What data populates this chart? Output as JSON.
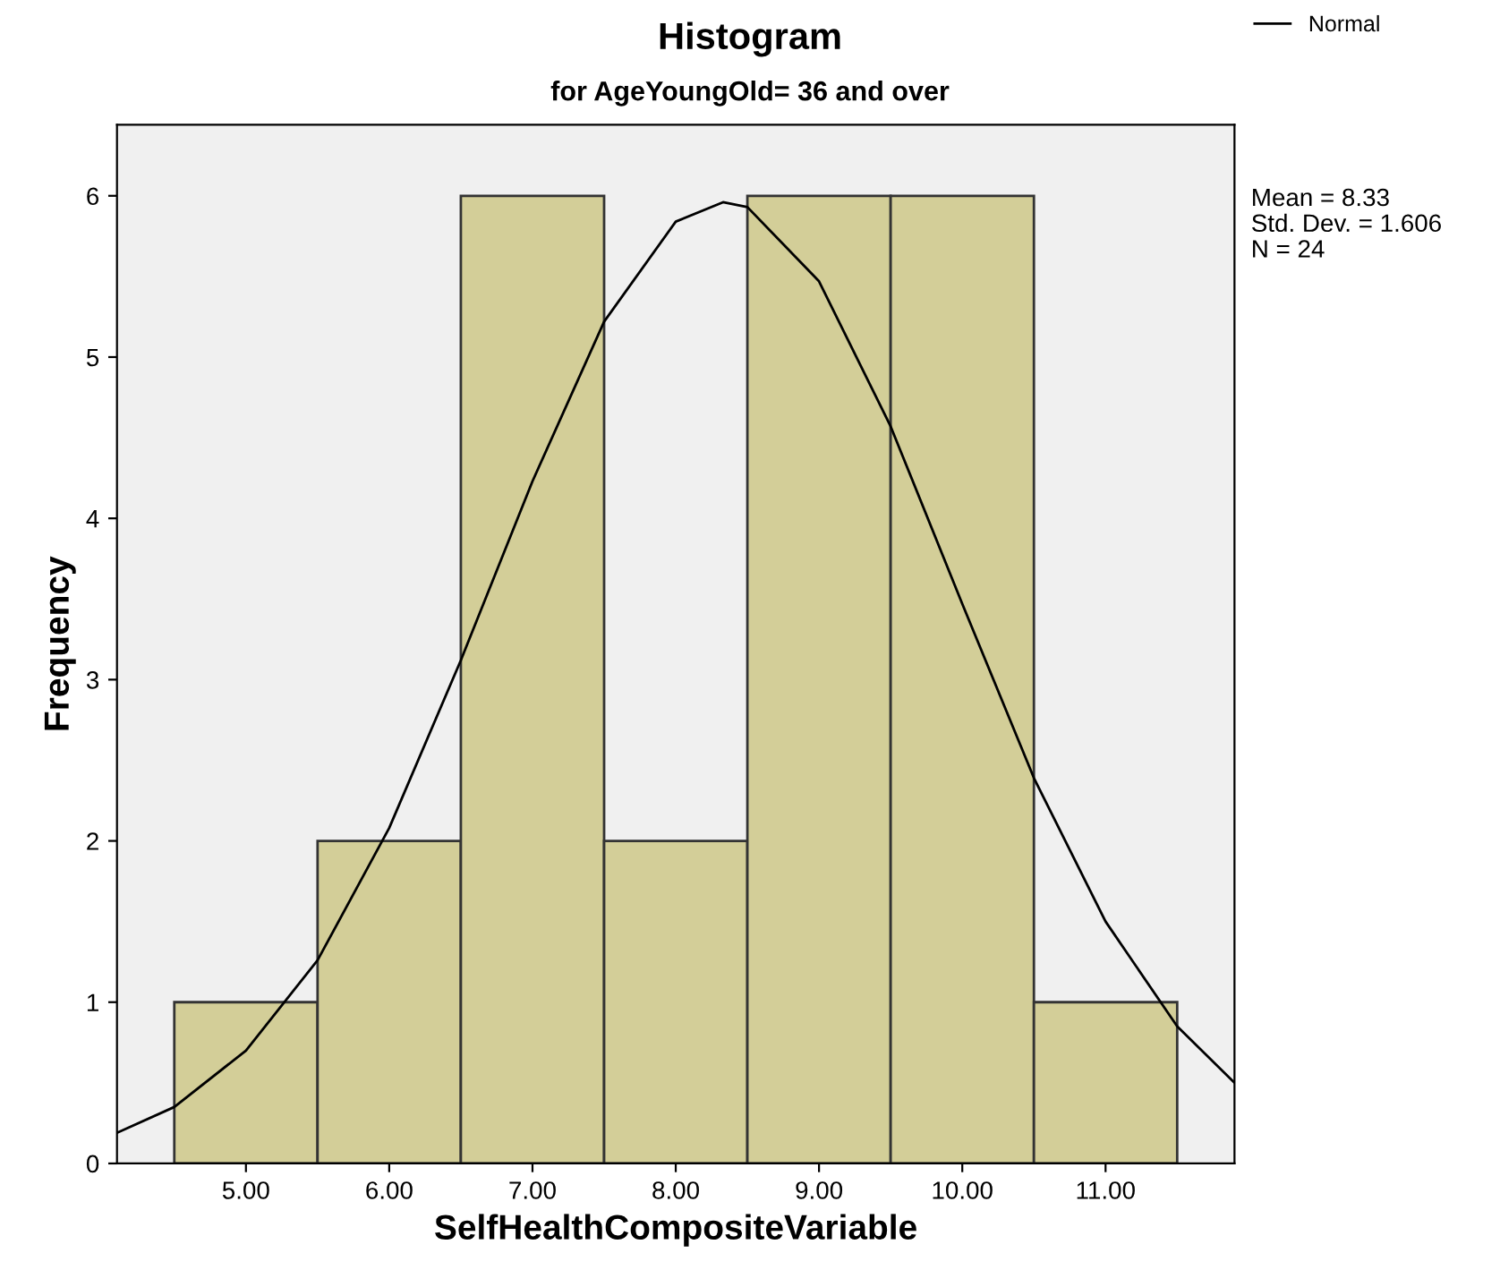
{
  "chart_data": {
    "type": "histogram",
    "title": "Histogram",
    "subtitle": "for AgeYoungOld= 36 and over",
    "xlabel": "SelfHealthCompositeVariable",
    "ylabel": "Frequency",
    "bins": [
      4.5,
      5.5,
      6.5,
      7.5,
      8.5,
      9.5,
      10.5,
      11.5
    ],
    "values": [
      1,
      2,
      6,
      2,
      6,
      6,
      1
    ],
    "color": "#d3ce98",
    "series": [
      {
        "type": "line",
        "name": "Normal",
        "color": "#000000",
        "x": [
          4.1,
          4.5,
          5,
          5.5,
          6,
          6.5,
          7,
          7.5,
          8,
          8.33,
          8.5,
          9,
          9.5,
          10,
          10.5,
          11,
          11.5,
          11.9
        ],
        "values": [
          0.19,
          0.35,
          0.7,
          1.26,
          2.08,
          3.12,
          4.23,
          5.22,
          5.84,
          5.96,
          5.93,
          5.47,
          4.57,
          3.47,
          2.39,
          1.5,
          0.85,
          0.5
        ]
      }
    ],
    "xlim": [
      4.1,
      11.9
    ],
    "ylim": [
      0,
      6.44
    ],
    "xticks": [
      {
        "value": 5,
        "label": "5.00"
      },
      {
        "value": 6,
        "label": "6.00"
      },
      {
        "value": 7,
        "label": "7.00"
      },
      {
        "value": 8,
        "label": "8.00"
      },
      {
        "value": 9,
        "label": "9.00"
      },
      {
        "value": 10,
        "label": "10.00"
      },
      {
        "value": 11,
        "label": "11.00"
      }
    ],
    "yticks": [
      0,
      1,
      2,
      3,
      4,
      5,
      6
    ],
    "annotations": [
      "Mean = 8.33",
      "Std. Dev. = 1.606",
      "N = 24"
    ],
    "legend": "top right",
    "grid": false,
    "line_style": "solid",
    "marker": "none"
  }
}
